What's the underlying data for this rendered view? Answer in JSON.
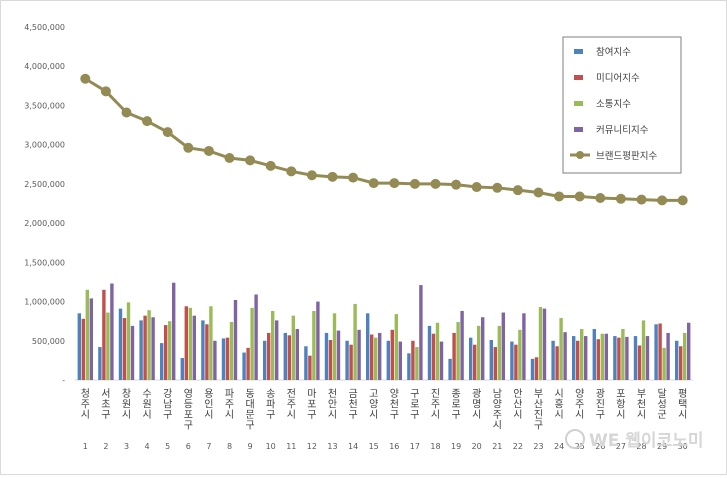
{
  "chart_data": {
    "type": "bar",
    "y_tick_labels": [
      "-",
      "500,000",
      "1,000,000",
      "1,500,000",
      "2,000,000",
      "2,500,000",
      "3,000,000",
      "3,500,000",
      "4,000,000",
      "4,500,000"
    ],
    "ylim": [
      0,
      4500000
    ],
    "grid": false,
    "legend_position": "top-right",
    "categories": [
      "청주시",
      "서초구",
      "창원시",
      "수원시",
      "강남구",
      "영등포구",
      "용인시",
      "파주시",
      "동대문구",
      "송파구",
      "전주시",
      "마포구",
      "천안시",
      "금천구",
      "고양시",
      "양천구",
      "구로구",
      "진주시",
      "종로구",
      "광명시",
      "남양주시",
      "안산시",
      "부산진구",
      "시흥시",
      "양주시",
      "광진구",
      "포항시",
      "부천시",
      "달성군",
      "평택시"
    ],
    "ranks": [
      "1",
      "2",
      "3",
      "4",
      "5",
      "6",
      "7",
      "8",
      "9",
      "10",
      "11",
      "12",
      "13",
      "14",
      "15",
      "16",
      "17",
      "18",
      "19",
      "20",
      "21",
      "22",
      "23",
      "24",
      "25",
      "26",
      "27",
      "28",
      "29",
      "30"
    ],
    "series": [
      {
        "name": "참여지수",
        "color": "#4f81bd",
        "kind": "bar",
        "values": [
          850000,
          420000,
          910000,
          760000,
          470000,
          280000,
          760000,
          530000,
          350000,
          500000,
          600000,
          430000,
          600000,
          500000,
          850000,
          500000,
          340000,
          690000,
          270000,
          540000,
          510000,
          490000,
          270000,
          500000,
          560000,
          650000,
          560000,
          560000,
          710000,
          500000
        ]
      },
      {
        "name": "미디어지수",
        "color": "#c0504d",
        "kind": "bar",
        "values": [
          780000,
          1150000,
          790000,
          820000,
          700000,
          940000,
          710000,
          540000,
          410000,
          600000,
          570000,
          310000,
          510000,
          450000,
          580000,
          640000,
          500000,
          590000,
          600000,
          450000,
          420000,
          450000,
          290000,
          430000,
          500000,
          520000,
          540000,
          440000,
          720000,
          430000
        ]
      },
      {
        "name": "소통지수",
        "color": "#9bbb59",
        "kind": "bar",
        "values": [
          1150000,
          860000,
          990000,
          890000,
          750000,
          920000,
          940000,
          740000,
          920000,
          880000,
          820000,
          880000,
          850000,
          970000,
          540000,
          840000,
          420000,
          730000,
          740000,
          690000,
          690000,
          640000,
          930000,
          790000,
          650000,
          590000,
          650000,
          760000,
          410000,
          600000
        ]
      },
      {
        "name": "커뮤니티지수",
        "color": "#8064a2",
        "kind": "bar",
        "values": [
          1040000,
          1230000,
          690000,
          800000,
          1240000,
          820000,
          500000,
          1020000,
          1090000,
          760000,
          650000,
          1000000,
          630000,
          640000,
          600000,
          490000,
          1210000,
          490000,
          880000,
          800000,
          860000,
          850000,
          910000,
          610000,
          560000,
          590000,
          550000,
          560000,
          600000,
          730000
        ]
      },
      {
        "name": "브랜드평판지수",
        "color": "#948a54",
        "kind": "line",
        "values": [
          3840000,
          3680000,
          3410000,
          3300000,
          3160000,
          2960000,
          2920000,
          2830000,
          2800000,
          2730000,
          2660000,
          2610000,
          2590000,
          2580000,
          2510000,
          2510000,
          2500000,
          2500000,
          2490000,
          2460000,
          2450000,
          2420000,
          2390000,
          2340000,
          2340000,
          2320000,
          2310000,
          2300000,
          2290000,
          2290000
        ]
      }
    ]
  },
  "watermark": {
    "text": "WE 웹이코노미",
    "icon": "we-logo-icon"
  }
}
